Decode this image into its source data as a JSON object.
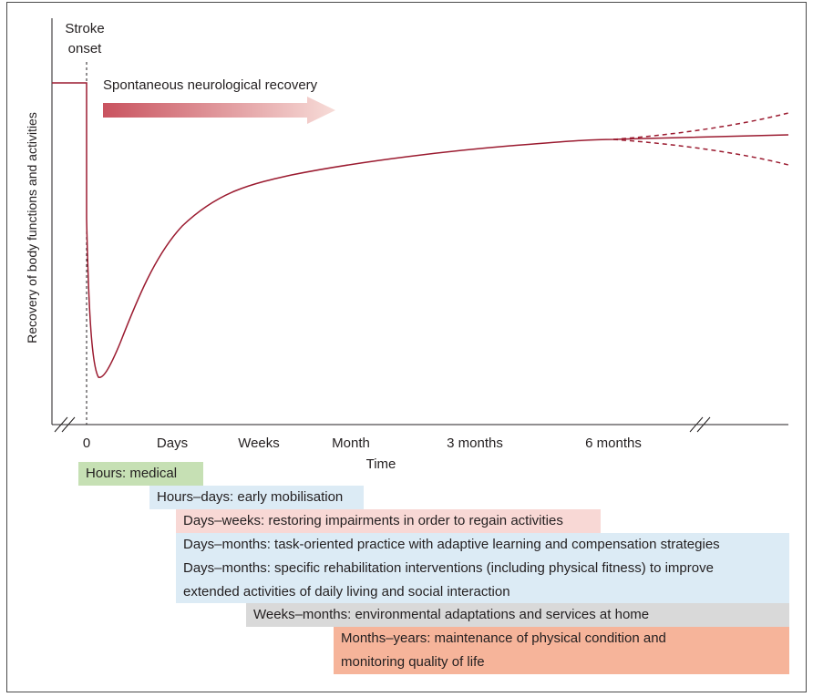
{
  "chart_data": {
    "type": "line",
    "ylabel": "Recovery of body functions and activities",
    "xlabel": "Time",
    "x_ticks": [
      "0",
      "Days",
      "Weeks",
      "Month",
      "3 months",
      "6 months"
    ],
    "event_label": "Stroke onset",
    "arrow_label": "Spontaneous neurological recovery",
    "curve_description": "Function drops sharply at stroke onset, reaches a minimum shortly after, then recovers steeply over days-weeks and levels off by about 6 months; after 6 months outcome may improve, stay stable or decline (dashed branches).",
    "colors": {
      "curve": "#9b1b30",
      "arrow_from": "#c9535f",
      "arrow_to": "#f7dcd8"
    }
  },
  "stroke_onset": {
    "line1": "Stroke",
    "line2": "onset"
  },
  "bands": [
    {
      "label": "Hours: medical",
      "color": "#c6e0b4"
    },
    {
      "label": "Hours–days: early mobilisation",
      "color": "#dcebf5"
    },
    {
      "label": "Days–weeks: restoring impairments in order to regain activities",
      "color": "#f8d8d5"
    },
    {
      "label": "Days–months: task-oriented practice with adaptive learning and compensation strategies",
      "color": "#dcebf5"
    },
    {
      "label": "Days–months: specific rehabilitation interventions (including physical fitness) to improve",
      "label2": "extended activities of daily living and social interaction",
      "color": "#dcebf5"
    },
    {
      "label": "Weeks–months: environmental adaptations and services at home",
      "color": "#d9d9d9"
    },
    {
      "label": "Months–years: maintenance of physical condition and",
      "label2": "monitoring quality of life",
      "color": "#f6b49a"
    }
  ]
}
